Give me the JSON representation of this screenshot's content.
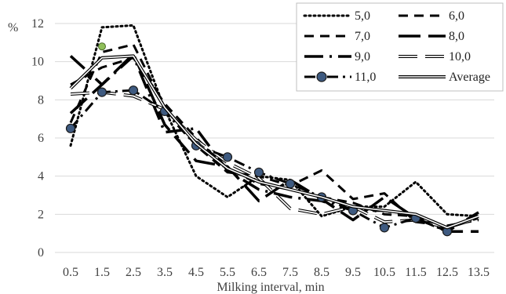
{
  "chart_data": {
    "type": "line",
    "title": "",
    "xlabel": "Milking interval, min",
    "ylabel": "%",
    "ylim": [
      0,
      12
    ],
    "yticks": [
      "0",
      "2",
      "4",
      "6",
      "8",
      "10",
      "12"
    ],
    "categories": [
      "0.5",
      "1.5",
      "2.5",
      "3.5",
      "4.5",
      "5.5",
      "6.5",
      "7.5",
      "8.5",
      "9.5",
      "10.5",
      "11.5",
      "12.5",
      "13.5"
    ],
    "grid": "horizontal",
    "legend_position": "top-right",
    "series": [
      {
        "name": "5,0",
        "style": "dotted",
        "values": [
          5.6,
          11.8,
          11.9,
          7.5,
          4.0,
          2.9,
          4.0,
          3.8,
          1.9,
          2.4,
          2.4,
          3.7,
          2.0,
          1.9
        ]
      },
      {
        "name": "6,0",
        "style": "dash",
        "values": [
          6.8,
          10.5,
          10.9,
          7.6,
          5.6,
          4.2,
          4.0,
          3.5,
          4.3,
          2.8,
          3.1,
          1.6,
          1.4,
          1.7
        ]
      },
      {
        "name": "7,0",
        "style": "dash",
        "values": [
          8.8,
          9.7,
          10.2,
          7.8,
          6.0,
          4.4,
          3.6,
          3.3,
          2.9,
          2.6,
          2.0,
          1.9,
          1.3,
          1.8
        ]
      },
      {
        "name": "8,0",
        "style": "longdash",
        "values": [
          7.3,
          8.8,
          10.4,
          6.7,
          4.8,
          4.5,
          2.7,
          3.8,
          2.8,
          1.7,
          2.9,
          1.8,
          1.1,
          1.1
        ]
      },
      {
        "name": "9,0",
        "style": "longdash-dot",
        "values": [
          10.3,
          8.8,
          10.3,
          6.3,
          6.5,
          4.3,
          3.3,
          2.9,
          2.7,
          2.2,
          2.2,
          1.9,
          1.1,
          2.1
        ]
      },
      {
        "name": "10,0",
        "style": "hollow-dash",
        "values": [
          8.3,
          8.4,
          8.2,
          7.5,
          5.9,
          4.7,
          3.9,
          2.3,
          2.0,
          2.4,
          1.6,
          1.7,
          1.3,
          1.8
        ]
      },
      {
        "name": "11,0",
        "style": "dash-dot-marker",
        "values": [
          6.5,
          8.4,
          8.5,
          7.4,
          5.6,
          5.0,
          4.2,
          3.6,
          2.9,
          2.2,
          1.3,
          1.8,
          1.1,
          null
        ]
      },
      {
        "name": "Average",
        "style": "double",
        "values": [
          8.6,
          10.2,
          10.3,
          7.6,
          5.7,
          4.4,
          3.7,
          3.3,
          2.9,
          2.4,
          2.2,
          2.0,
          1.3,
          1.9
        ]
      }
    ]
  }
}
